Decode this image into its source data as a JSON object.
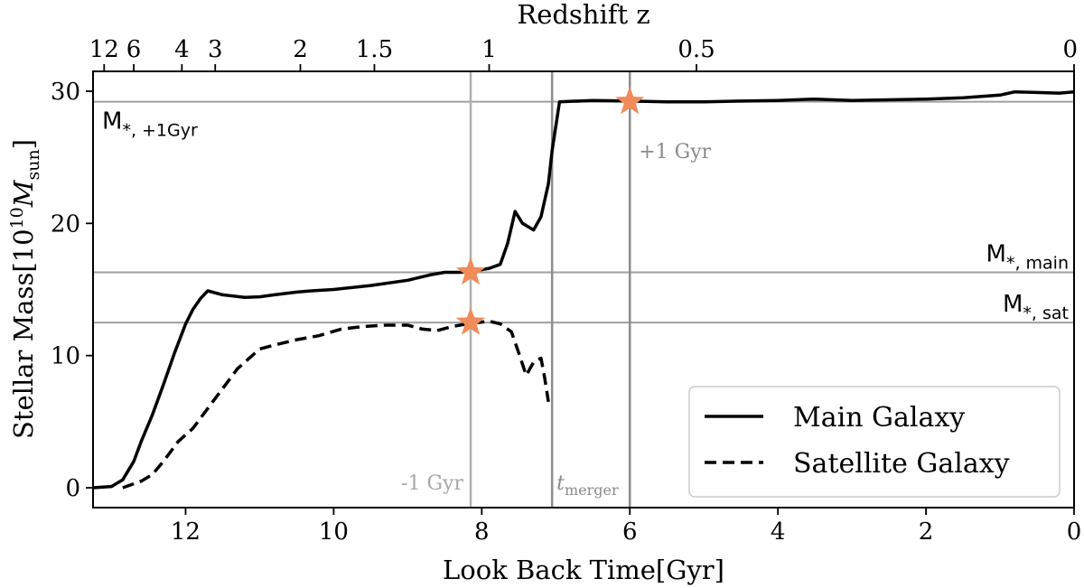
{
  "chart_data": {
    "type": "line",
    "xlabel": "Look Back Time[Gyr]",
    "ylabel": "Stellar Mass[10",
    "ylabel_sup": "10",
    "ylabel_unit": "M",
    "ylabel_unit_sub": "sun",
    "ylabel_close": "]",
    "top_axis_label": "Redshift z",
    "xlim": [
      13.25,
      0
    ],
    "ylim": [
      -1.5,
      31.5
    ],
    "xticks": [
      12,
      10,
      8,
      6,
      4,
      2,
      0
    ],
    "yticks": [
      0,
      10,
      20,
      30
    ],
    "top_ticks": [
      {
        "label": "12",
        "t": 13.1
      },
      {
        "label": "6",
        "t": 12.7
      },
      {
        "label": "4",
        "t": 12.05
      },
      {
        "label": "3",
        "t": 11.6
      },
      {
        "label": "2",
        "t": 10.45
      },
      {
        "label": "1.5",
        "t": 9.45
      },
      {
        "label": "1",
        "t": 7.9
      },
      {
        "label": "0.5",
        "t": 5.1
      },
      {
        "label": "0",
        "t": 0
      }
    ],
    "series": [
      {
        "name": "Main Galaxy",
        "style": "solid",
        "x": [
          13.25,
          13.0,
          12.85,
          12.7,
          12.6,
          12.45,
          12.3,
          12.15,
          12.0,
          11.9,
          11.8,
          11.7,
          11.5,
          11.2,
          11.0,
          10.8,
          10.5,
          10.3,
          10.0,
          9.5,
          9.0,
          8.7,
          8.5,
          8.3,
          8.15,
          8.0,
          7.9,
          7.75,
          7.65,
          7.55,
          7.45,
          7.3,
          7.2,
          7.1,
          7.05,
          6.95,
          6.5,
          6.0,
          5.5,
          5.0,
          4.5,
          4.0,
          3.5,
          3.0,
          2.5,
          2.0,
          1.5,
          1.0,
          0.8,
          0.5,
          0.2,
          0.0
        ],
        "y": [
          0.0,
          0.1,
          0.6,
          2.0,
          3.5,
          5.5,
          7.8,
          10.2,
          12.4,
          13.5,
          14.3,
          14.9,
          14.6,
          14.4,
          14.45,
          14.6,
          14.8,
          14.9,
          15.0,
          15.3,
          15.7,
          16.1,
          16.3,
          16.3,
          16.35,
          16.5,
          16.6,
          16.9,
          18.5,
          20.9,
          20.0,
          19.5,
          20.5,
          23.0,
          25.5,
          29.2,
          29.3,
          29.25,
          29.2,
          29.2,
          29.25,
          29.3,
          29.4,
          29.3,
          29.35,
          29.4,
          29.5,
          29.7,
          29.95,
          29.9,
          29.85,
          29.95
        ]
      },
      {
        "name": "Satellite Galaxy",
        "style": "dashed",
        "x": [
          12.85,
          12.6,
          12.45,
          12.3,
          12.1,
          11.9,
          11.7,
          11.5,
          11.3,
          11.1,
          11.0,
          10.8,
          10.5,
          10.2,
          9.9,
          9.6,
          9.3,
          9.0,
          8.8,
          8.6,
          8.4,
          8.2,
          8.05,
          7.9,
          7.75,
          7.6,
          7.5,
          7.4,
          7.3,
          7.2,
          7.15,
          7.1
        ],
        "y": [
          0.0,
          0.5,
          1.0,
          2.0,
          3.5,
          4.5,
          6.0,
          7.5,
          9.0,
          10.0,
          10.5,
          10.8,
          11.2,
          11.5,
          12.0,
          12.2,
          12.3,
          12.3,
          12.0,
          11.9,
          12.2,
          12.4,
          12.5,
          12.6,
          12.4,
          11.8,
          10.2,
          8.5,
          9.5,
          9.8,
          8.3,
          6.5
        ]
      }
    ],
    "hlines": [
      {
        "y": 29.2,
        "label": "M",
        "sub": "*, +1Gyr"
      },
      {
        "y": 16.3,
        "label": "M",
        "sub": "*, main"
      },
      {
        "y": 12.5,
        "label": "M",
        "sub": "*, sat"
      }
    ],
    "vlines": [
      {
        "x": 8.15,
        "label": "-1 Gyr",
        "color": "#b0b0b0"
      },
      {
        "x": 7.05,
        "label": "t",
        "sub": "merger",
        "color": "#8c8c8c"
      },
      {
        "x": 6.0,
        "label": "+1 Gyr",
        "color": "#8c8c8c"
      }
    ],
    "markers": [
      {
        "x": 6.0,
        "y": 29.2
      },
      {
        "x": 8.15,
        "y": 16.3
      },
      {
        "x": 8.15,
        "y": 12.5
      }
    ],
    "colors": {
      "lines": "#000000",
      "refline": "#a0a0a0",
      "star": "#f08c5a"
    },
    "legend": {
      "location": "lower-right",
      "entries": [
        "Main Galaxy",
        "Satellite Galaxy"
      ]
    },
    "grid": false
  }
}
